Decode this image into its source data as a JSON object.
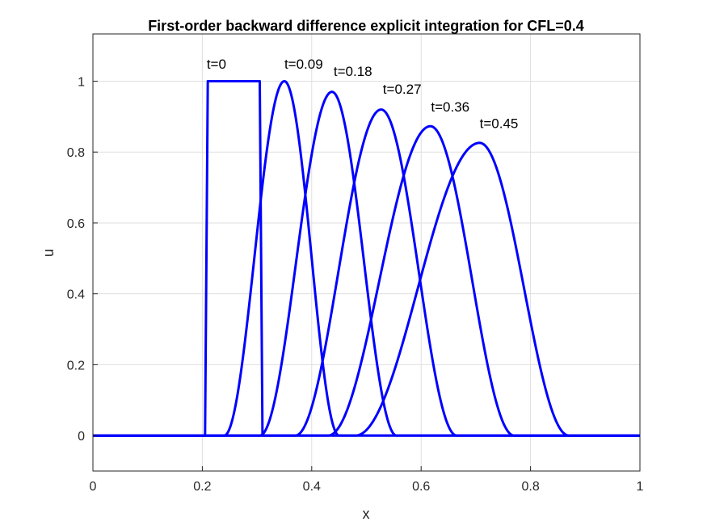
{
  "chart_data": {
    "type": "line",
    "title": "First-order backward difference explicit integration for  CFL=0.4",
    "xlabel": "x",
    "ylabel": "u",
    "xlim": [
      0,
      1
    ],
    "ylim": [
      -0.1,
      1.1333
    ],
    "xticks": [
      0,
      0.2,
      0.4,
      0.6,
      0.8,
      1
    ],
    "xtick_labels": [
      "0",
      "0.2",
      "0.4",
      "0.6",
      "0.8",
      "1"
    ],
    "yticks": [
      0,
      0.2,
      0.4,
      0.6,
      0.8,
      1
    ],
    "ytick_labels": [
      "0",
      "0.2",
      "0.4",
      "0.6",
      "0.8",
      "1"
    ],
    "grid": true,
    "line_color": "#0000ff",
    "series": [
      {
        "kind": "square",
        "x_left": 0.205,
        "x_right": 0.31,
        "plateau_left": 0.21,
        "plateau_right": 0.305,
        "peak": 1.0,
        "label": "t=0"
      },
      {
        "kind": "bell",
        "x_start": 0.24,
        "x_peak": 0.35,
        "x_end": 0.45,
        "peak": 1.0,
        "label": "t=0.09"
      },
      {
        "kind": "bell",
        "x_start": 0.305,
        "x_peak": 0.437,
        "x_end": 0.555,
        "peak": 0.97,
        "label": "t=0.18"
      },
      {
        "kind": "bell",
        "x_start": 0.37,
        "x_peak": 0.527,
        "x_end": 0.665,
        "peak": 0.92,
        "label": "t=0.27"
      },
      {
        "kind": "bell",
        "x_start": 0.43,
        "x_peak": 0.617,
        "x_end": 0.77,
        "peak": 0.873,
        "label": "t=0.36"
      },
      {
        "kind": "bell",
        "x_start": 0.48,
        "x_peak": 0.707,
        "x_end": 0.87,
        "peak": 0.826,
        "label": "t=0.45"
      }
    ],
    "annotations": [
      {
        "text": "t=0",
        "x": 0.208,
        "y": 1.035
      },
      {
        "text": "t=0.09",
        "x": 0.35,
        "y": 1.035
      },
      {
        "text": "t=0.18",
        "x": 0.44,
        "y": 1.015
      },
      {
        "text": "t=0.27",
        "x": 0.53,
        "y": 0.965
      },
      {
        "text": "t=0.36",
        "x": 0.618,
        "y": 0.915
      },
      {
        "text": "t=0.45",
        "x": 0.707,
        "y": 0.868
      }
    ]
  }
}
